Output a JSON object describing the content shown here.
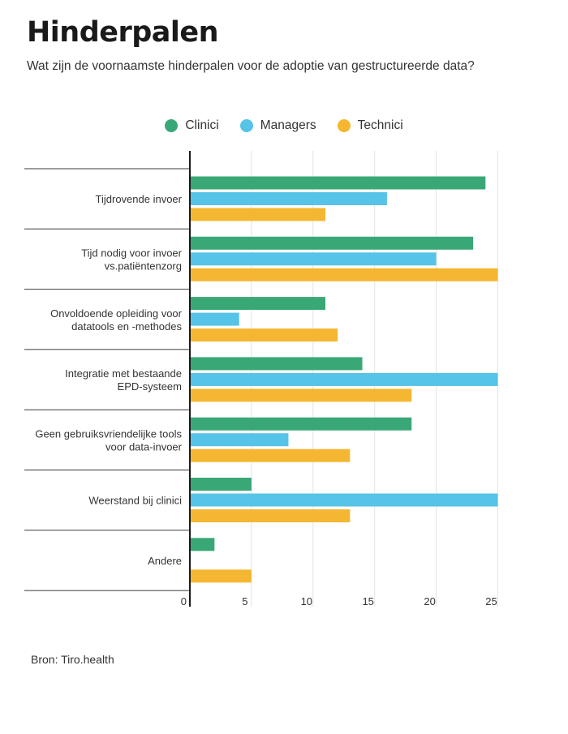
{
  "title": "Hinderpalen",
  "subtitle": "Wat zijn de voornaamste hinderpalen voor de adoptie van gestructureerde data?",
  "source": "Bron: Tiro.health",
  "chart_data": {
    "type": "bar",
    "orientation": "horizontal",
    "title": "Hinderpalen",
    "categories": [
      [
        "Tijdrovende invoer"
      ],
      [
        "Tijd nodig voor invoer",
        "vs.patiëntenzorg"
      ],
      [
        "Onvoldoende opleiding voor",
        "datatools en -methodes"
      ],
      [
        "Integratie met bestaande",
        "EPD-systeem"
      ],
      [
        "Geen gebruiksvriendelijke tools",
        "voor data-invoer"
      ],
      [
        "Weerstand bij clinici"
      ],
      [
        "Andere"
      ]
    ],
    "series": [
      {
        "name": "Clinici",
        "color": "#3aa876",
        "values": [
          24,
          23,
          11,
          14,
          18,
          5,
          2
        ]
      },
      {
        "name": "Managers",
        "color": "#56c3e8",
        "values": [
          16,
          20,
          4,
          25,
          8,
          25,
          0
        ]
      },
      {
        "name": "Technici",
        "color": "#f5b731",
        "values": [
          11,
          25,
          12,
          18,
          13,
          13,
          5
        ]
      }
    ],
    "xlim": [
      0,
      25
    ],
    "xticks": [
      0,
      5,
      10,
      15,
      20,
      25
    ],
    "xlabel": "",
    "ylabel": "",
    "grid": true,
    "legend": "top-center"
  }
}
